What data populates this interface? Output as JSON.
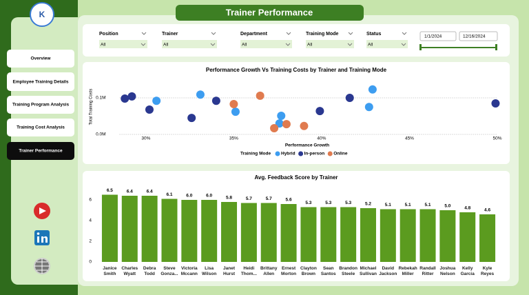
{
  "title": "Trainer Performance",
  "nav": [
    "Overview",
    "Employee Training Details",
    "Training Program Analysis",
    "Training Cost Analysis",
    "Trainer Performance"
  ],
  "filters": [
    {
      "label": "Position",
      "value": "All"
    },
    {
      "label": "Trainer",
      "value": "All"
    },
    {
      "label": "Department",
      "value": "All"
    },
    {
      "label": "Training Mode",
      "value": "All"
    },
    {
      "label": "Status",
      "value": "All"
    }
  ],
  "date_range": {
    "start": "1/1/2024",
    "end": "12/16/2024"
  },
  "chart_data": [
    {
      "type": "scatter",
      "title": "Performance Growth Vs Training Costs by Trainer and Training Mode",
      "x_label": "Performance Growth",
      "y_label": "Total Training Costs",
      "legend_title": "Training Mode",
      "xlim": [
        28.5,
        50
      ],
      "ylim": [
        0,
        150000
      ],
      "xticks": [
        {
          "value": 30,
          "label": "30%"
        },
        {
          "value": 35,
          "label": "35%"
        },
        {
          "value": 40,
          "label": "40%"
        },
        {
          "value": 45,
          "label": "45%"
        },
        {
          "value": 50,
          "label": "50%"
        }
      ],
      "yticks": [
        {
          "value": 0,
          "label": "0.0M"
        },
        {
          "value": 100000,
          "label": "0.1M"
        }
      ],
      "grid": true,
      "series": [
        {
          "name": "Hybrid",
          "color": "#3d9df0",
          "x": [
            30.6,
            33.1,
            35.1,
            37.7,
            37.6,
            42.9,
            42.7
          ],
          "values": [
            92000,
            109000,
            62000,
            51000,
            30000,
            123000,
            75000
          ]
        },
        {
          "name": "In-person",
          "color": "#2a3890",
          "x": [
            28.8,
            29.2,
            30.2,
            32.6,
            34.0,
            39.9,
            41.6,
            49.9
          ],
          "values": [
            98000,
            104000,
            68000,
            45000,
            92000,
            64000,
            100000,
            85000
          ]
        },
        {
          "name": "Online",
          "color": "#e07b4f",
          "x": [
            35.0,
            36.5,
            37.3,
            38.0,
            39.0
          ],
          "values": [
            83000,
            106000,
            17000,
            28000,
            23000
          ]
        }
      ]
    },
    {
      "type": "bar",
      "title": "Avg. Feedback Score by Trainer",
      "color": "#5b9b1f",
      "categories": [
        "Janice Smith",
        "Charles Wyatt",
        "Debra Todd",
        "Steve Gonza...",
        "Victoria Mccann",
        "Lisa Wilson",
        "Janet Hurst",
        "Heidi Thom...",
        "Brittany Allen",
        "Ernest Morton",
        "Clayton Brown",
        "Sean Santos",
        "Brandon Steele",
        "Michael Sullivan",
        "David Jackson",
        "Rebekah Miller",
        "Randall Ritter",
        "Joshua Nelson",
        "Kelly Garcia",
        "Kyle Reyes"
      ],
      "values": [
        6.5,
        6.4,
        6.4,
        6.1,
        6.0,
        6.0,
        5.8,
        5.7,
        5.7,
        5.6,
        5.3,
        5.3,
        5.3,
        5.2,
        5.1,
        5.1,
        5.1,
        5.0,
        4.8,
        4.6
      ],
      "value_labels": [
        "6.5",
        "6.4",
        "6.4",
        "6.1",
        "6.0",
        "6.0",
        "5.8",
        "5.7",
        "5.7",
        "5.6",
        "5.3",
        "5.3",
        "5.3",
        "5.2",
        "5.1",
        "5.1",
        "5.1",
        "5.0",
        "4.8",
        "4.6"
      ],
      "ylim": [
        0,
        7
      ],
      "yticks": [
        0,
        2,
        4,
        6
      ]
    }
  ]
}
